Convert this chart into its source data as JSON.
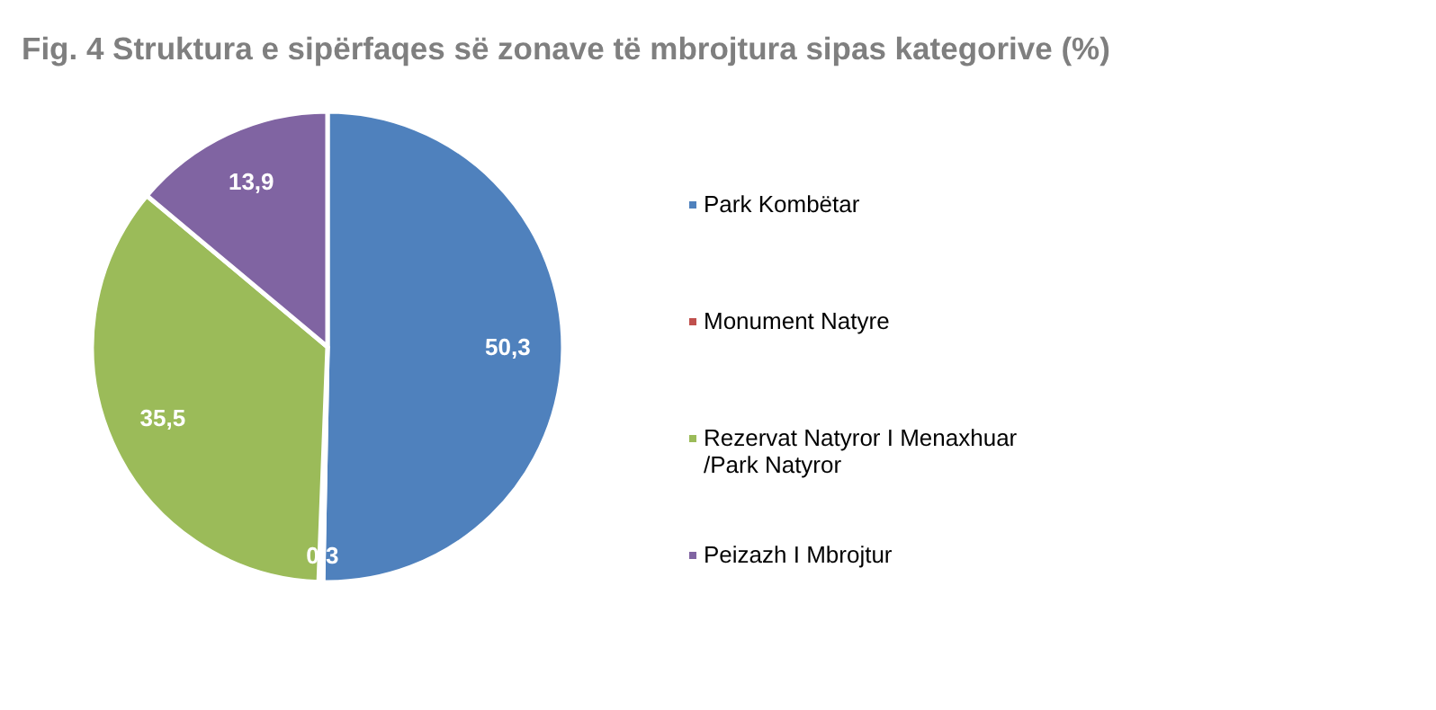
{
  "chart_data": {
    "type": "pie",
    "title": "Fig. 4 Struktura e sipërfaqes së zonave të mbrojtura sipas kategorive (%)",
    "categories": [
      "Park Kombëtar",
      "Monument Natyre",
      "Rezervat Natyror I Menaxhuar /Park Natyror",
      "Peizazh I Mbrojtur"
    ],
    "values": [
      50.3,
      0.3,
      35.5,
      13.9
    ],
    "value_labels": [
      "50,3",
      "0,3",
      "35,5",
      "13,9"
    ],
    "colors": [
      "#4f81bd",
      "#c0504d",
      "#9bbb59",
      "#8064a2"
    ],
    "legend": "right"
  }
}
